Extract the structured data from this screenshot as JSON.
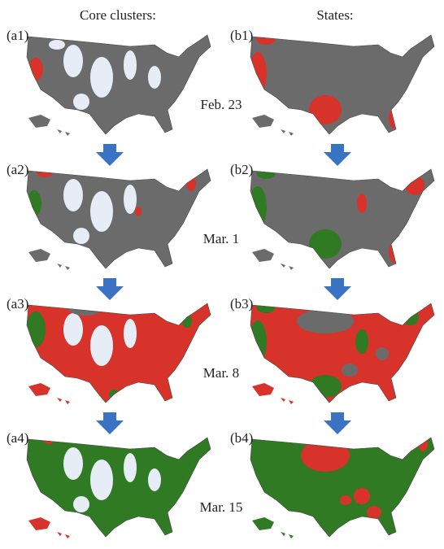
{
  "headers": {
    "left": "Core clusters:",
    "right": "States:"
  },
  "panels": [
    {
      "left": "(a1)",
      "right": "(b1)",
      "date": "Feb. 23"
    },
    {
      "left": "(a2)",
      "right": "(b2)",
      "date": "Mar. 1"
    },
    {
      "left": "(a3)",
      "right": "(b3)",
      "date": "Mar. 8"
    },
    {
      "left": "(a4)",
      "right": "(b4)",
      "date": "Mar. 15"
    }
  ]
}
